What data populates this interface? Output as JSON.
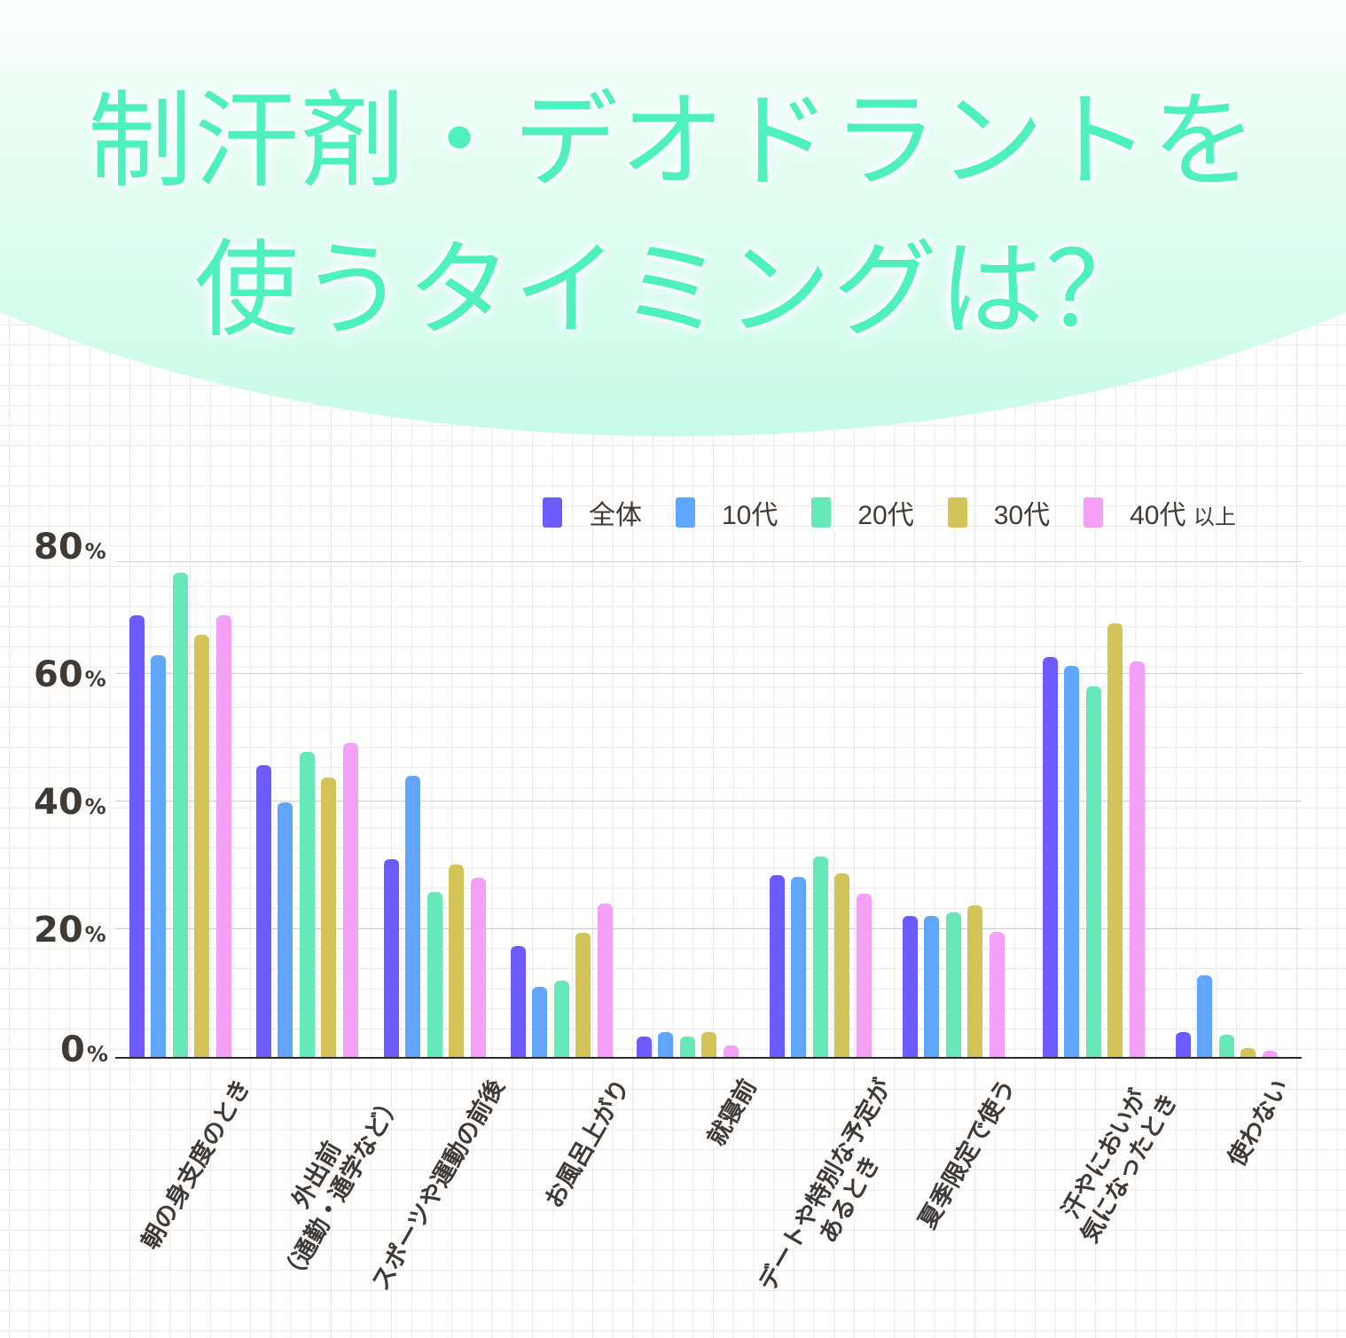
{
  "title": {
    "line1": "制汗剤・デオドラントを",
    "line2": "使うタイミングは？"
  },
  "colors": {
    "title": "#4ef0bd",
    "header_mint": "#c8fbe9",
    "series": [
      "#6c5cff",
      "#60a5ff",
      "#67e8b8",
      "#d3c45a",
      "#f5a0f7"
    ],
    "axis_text": "#3f3a36"
  },
  "legend": [
    {
      "label": "全体",
      "color": "#6c5cff"
    },
    {
      "label": "10代",
      "color": "#60a5ff"
    },
    {
      "label": "20代",
      "color": "#67e8b8"
    },
    {
      "label": "30代",
      "color": "#d3c45a"
    },
    {
      "label": "40代",
      "suffix": "以上",
      "color": "#f5a0f7"
    }
  ],
  "yaxis": {
    "ticks": [
      {
        "value": "80",
        "unit": "%"
      },
      {
        "value": "60",
        "unit": "%"
      },
      {
        "value": "40",
        "unit": "%"
      },
      {
        "value": "20",
        "unit": "%"
      },
      {
        "value": "0",
        "unit": "%"
      }
    ]
  },
  "categories": [
    {
      "lines": [
        "朝の身支度のとき"
      ]
    },
    {
      "lines": [
        "外出前",
        "（通勤・通学など）"
      ]
    },
    {
      "lines": [
        "スポーツや運動の前後"
      ]
    },
    {
      "lines": [
        "お風呂上がり"
      ]
    },
    {
      "lines": [
        "就寝前"
      ]
    },
    {
      "lines": [
        "デートや特別な予定が",
        "あるとき"
      ]
    },
    {
      "lines": [
        "夏季限定で使う"
      ]
    },
    {
      "lines": [
        "汗やにおいが",
        "気になったとき"
      ]
    },
    {
      "lines": [
        "使わない"
      ]
    }
  ],
  "chart_data": {
    "type": "bar",
    "title": "制汗剤・デオドラントを使うタイミングは？",
    "xlabel": "",
    "ylabel": "",
    "ylim": [
      0,
      80
    ],
    "yticks": [
      "0%",
      "20%",
      "40%",
      "60%",
      "80%"
    ],
    "grid": true,
    "legend_position": "top-right",
    "categories": [
      "朝の身支度のとき",
      "外出前（通勤・通学など）",
      "スポーツや運動の前後",
      "お風呂上がり",
      "就寝前",
      "デートや特別な予定があるとき",
      "夏季限定で使う",
      "汗やにおいが気になったとき",
      "使わない"
    ],
    "series": [
      {
        "name": "全体",
        "color": "#6c5cff",
        "values": [
          69.3,
          45.8,
          31.1,
          17.5,
          3.3,
          28.6,
          22.2,
          62.8,
          4.0
        ]
      },
      {
        "name": "10代",
        "color": "#60a5ff",
        "values": [
          63.1,
          40.0,
          44.2,
          11.1,
          4.0,
          28.3,
          22.2,
          61.4,
          12.9
        ]
      },
      {
        "name": "20代",
        "color": "#67e8b8",
        "values": [
          76.0,
          47.9,
          26.0,
          12.1,
          3.3,
          31.5,
          22.8,
          58.2,
          3.6
        ]
      },
      {
        "name": "30代",
        "color": "#d3c45a",
        "values": [
          66.3,
          43.9,
          30.3,
          19.6,
          4.0,
          28.9,
          23.9,
          68.1,
          1.5
        ]
      },
      {
        "name": "40代以上",
        "color": "#f5a0f7",
        "values": [
          69.3,
          49.3,
          28.2,
          24.2,
          1.9,
          25.7,
          19.7,
          62.1,
          1.1
        ]
      }
    ]
  }
}
